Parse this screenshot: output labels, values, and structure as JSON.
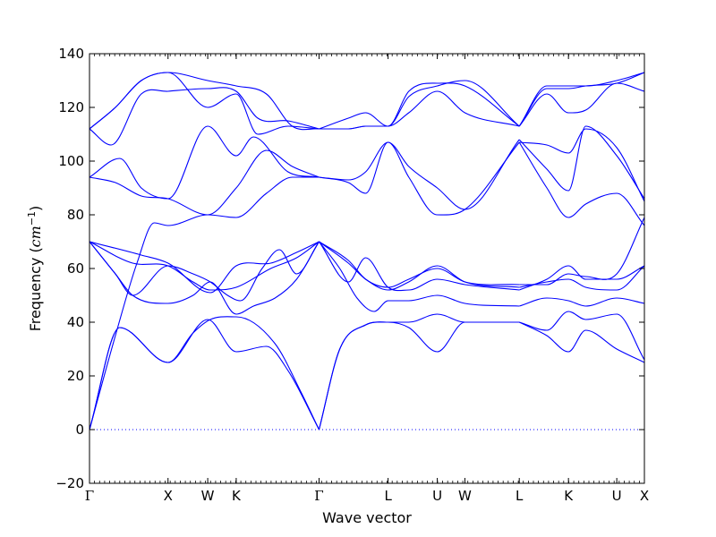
{
  "chart_data": {
    "type": "line",
    "title": "",
    "xlabel": "Wave vector",
    "ylabel": "Frequency (cm⁻¹)",
    "ylabel_parts": {
      "text": "Frequency (",
      "unit": "cm",
      "exp": "−1",
      "close": ")"
    },
    "ylim": [
      -20,
      140
    ],
    "yticks": [
      -20,
      0,
      20,
      40,
      60,
      80,
      100,
      120,
      140
    ],
    "ytick_labels": [
      "−20",
      "0",
      "20",
      "40",
      "60",
      "80",
      "100",
      "120",
      "140"
    ],
    "xlim": [
      0,
      6.43
    ],
    "xticks": [
      {
        "label": "Γ",
        "x": 0.0
      },
      {
        "label": "X",
        "x": 0.91
      },
      {
        "label": "W",
        "x": 1.37
      },
      {
        "label": "K",
        "x": 1.7
      },
      {
        "label": "Γ",
        "x": 2.66
      },
      {
        "label": "L",
        "x": 3.46
      },
      {
        "label": "U",
        "x": 4.03
      },
      {
        "label": "W",
        "x": 4.35
      },
      {
        "label": "L",
        "x": 4.98
      },
      {
        "label": "K",
        "x": 5.55
      },
      {
        "label": "U",
        "x": 6.11
      },
      {
        "label": "X",
        "x": 6.43
      }
    ],
    "zero_line": true,
    "grid": false,
    "legend": "none",
    "line_color": "#0000ff",
    "series": [
      {
        "x": [
          0,
          0.35,
          0.91,
          1.37,
          1.7,
          2.05,
          2.3,
          2.66
        ],
        "values": [
          0,
          38,
          25,
          41,
          29,
          31,
          22,
          0
        ]
      },
      {
        "x": [
          0,
          0.35,
          0.91,
          1.2,
          1.4,
          1.7,
          2.15,
          2.45,
          2.66
        ],
        "values": [
          0,
          38,
          25,
          36,
          41,
          42,
          32,
          14,
          0
        ]
      },
      {
        "x": [
          0,
          0.3,
          0.5,
          0.91,
          1.2,
          1.4,
          1.7,
          1.9,
          2.15,
          2.4,
          2.66
        ],
        "values": [
          70,
          58,
          50,
          47,
          50,
          55,
          43,
          46,
          49,
          56,
          70
        ]
      },
      {
        "x": [
          0,
          0.3,
          0.5,
          0.91,
          1.2,
          1.4,
          1.6,
          1.75,
          2.0,
          2.2,
          2.4,
          2.66
        ],
        "values": [
          70,
          58,
          50,
          61,
          58,
          55,
          50,
          48,
          60,
          67,
          58,
          70
        ]
      },
      {
        "x": [
          0,
          0.5,
          0.91,
          1.2,
          1.4,
          1.7,
          2.1,
          2.4,
          2.66
        ],
        "values": [
          70,
          62,
          61,
          55,
          52,
          53,
          60,
          64,
          70
        ]
      },
      {
        "x": [
          0,
          0.6,
          0.91,
          1.4,
          1.7,
          2.1,
          2.4,
          2.66
        ],
        "values": [
          70,
          65,
          62,
          51,
          61,
          62,
          66,
          70
        ]
      },
      {
        "x": [
          0,
          0.3,
          0.55,
          0.75,
          0.91,
          1.37,
          1.7,
          2.05,
          2.35,
          2.66
        ],
        "values": [
          0,
          35,
          62,
          77,
          76,
          80,
          79,
          88,
          94,
          94
        ]
      },
      {
        "x": [
          0,
          0.3,
          0.6,
          0.91,
          1.37,
          1.7,
          2.05,
          2.35,
          2.66
        ],
        "values": [
          94,
          92,
          87,
          86,
          80,
          90,
          104,
          98,
          94
        ]
      },
      {
        "x": [
          0,
          0.35,
          0.6,
          0.91,
          1.37,
          1.7,
          1.9,
          2.3,
          2.66
        ],
        "values": [
          94,
          101,
          90,
          86,
          113,
          102,
          109,
          96,
          94
        ]
      },
      {
        "x": [
          0,
          0.25,
          0.6,
          0.91,
          1.37,
          1.7,
          1.95,
          2.3,
          2.66
        ],
        "values": [
          112,
          106,
          125,
          126,
          127,
          126,
          116,
          115,
          112
        ]
      },
      {
        "x": [
          0,
          0.3,
          0.6,
          0.91,
          1.37,
          1.7,
          1.95,
          2.3,
          2.66
        ],
        "values": [
          112,
          120,
          130,
          133,
          120,
          125,
          110,
          113,
          112
        ]
      },
      {
        "x": [
          0,
          0.3,
          0.6,
          0.91,
          1.37,
          1.7,
          2.05,
          2.35,
          2.66
        ],
        "values": [
          112,
          120,
          130,
          133,
          130,
          128,
          125,
          113,
          112
        ]
      },
      {
        "x": [
          2.66,
          2.9,
          3.2,
          3.46,
          3.7,
          4.03,
          4.35,
          4.98
        ],
        "values": [
          0,
          30,
          39,
          40,
          38,
          29,
          40,
          40
        ]
      },
      {
        "x": [
          2.66,
          2.9,
          3.2,
          3.46,
          3.7,
          4.03,
          4.35,
          4.98
        ],
        "values": [
          0,
          30,
          39,
          40,
          40,
          43,
          40,
          40
        ]
      },
      {
        "x": [
          2.66,
          2.9,
          3.1,
          3.3,
          3.46,
          3.7,
          4.03,
          4.35,
          4.98
        ],
        "values": [
          70,
          60,
          49,
          44,
          48,
          48,
          50,
          47,
          46
        ]
      },
      {
        "x": [
          2.66,
          3.0,
          3.2,
          3.46,
          3.7,
          4.03,
          4.35,
          4.98
        ],
        "values": [
          70,
          55,
          64,
          53,
          52,
          56,
          54,
          52
        ]
      },
      {
        "x": [
          2.66,
          3.0,
          3.2,
          3.46,
          3.7,
          4.03,
          4.35,
          4.98
        ],
        "values": [
          70,
          62,
          56,
          52,
          55,
          61,
          55,
          53
        ]
      },
      {
        "x": [
          2.66,
          3.0,
          3.2,
          3.46,
          3.7,
          4.03,
          4.35,
          4.98
        ],
        "values": [
          70,
          63,
          56,
          53,
          56,
          60,
          55,
          54
        ]
      },
      {
        "x": [
          2.66,
          3.0,
          3.2,
          3.46,
          3.7,
          4.03,
          4.35,
          4.98
        ],
        "values": [
          94,
          92,
          88,
          107,
          94,
          80,
          82,
          107
        ]
      },
      {
        "x": [
          2.66,
          3.0,
          3.2,
          3.46,
          3.7,
          4.03,
          4.35,
          4.98
        ],
        "values": [
          94,
          93,
          96,
          107,
          98,
          90,
          82,
          108
        ]
      },
      {
        "x": [
          2.66,
          3.0,
          3.2,
          3.46,
          3.7,
          4.03,
          4.35,
          4.98
        ],
        "values": [
          112,
          116,
          118,
          113,
          118,
          126,
          118,
          113
        ]
      },
      {
        "x": [
          2.66,
          3.0,
          3.2,
          3.46,
          3.7,
          4.03,
          4.35,
          4.98
        ],
        "values": [
          112,
          112,
          113,
          113,
          124,
          128,
          130,
          113
        ]
      },
      {
        "x": [
          2.66,
          3.0,
          3.2,
          3.46,
          3.7,
          4.03,
          4.35,
          4.98
        ],
        "values": [
          112,
          112,
          113,
          113,
          126,
          129,
          128,
          113
        ]
      },
      {
        "x": [
          4.98,
          5.3,
          5.55,
          5.75,
          6.11,
          6.43
        ],
        "values": [
          40,
          35,
          29,
          37,
          30,
          25
        ]
      },
      {
        "x": [
          4.98,
          5.3,
          5.55,
          5.75,
          6.11,
          6.43
        ],
        "values": [
          40,
          37,
          44,
          41,
          43,
          26
        ]
      },
      {
        "x": [
          4.98,
          5.3,
          5.55,
          5.75,
          6.11,
          6.43
        ],
        "values": [
          46,
          49,
          48,
          46,
          49,
          47
        ]
      },
      {
        "x": [
          4.98,
          5.3,
          5.55,
          5.75,
          6.11,
          6.43
        ],
        "values": [
          52,
          56,
          61,
          56,
          56,
          61
        ]
      },
      {
        "x": [
          4.98,
          5.3,
          5.55,
          5.75,
          6.11,
          6.43
        ],
        "values": [
          53,
          55,
          56,
          53,
          52,
          61
        ]
      },
      {
        "x": [
          4.98,
          5.3,
          5.55,
          5.75,
          6.11,
          6.43
        ],
        "values": [
          54,
          54,
          58,
          57,
          58,
          79
        ]
      },
      {
        "x": [
          4.98,
          5.3,
          5.55,
          5.75,
          6.11,
          6.43
        ],
        "values": [
          107,
          90,
          79,
          84,
          88,
          76
        ]
      },
      {
        "x": [
          4.98,
          5.3,
          5.55,
          5.75,
          6.11,
          6.43
        ],
        "values": [
          108,
          97,
          89,
          113,
          102,
          86
        ]
      },
      {
        "x": [
          4.98,
          5.3,
          5.55,
          5.75,
          6.11,
          6.43
        ],
        "values": [
          107,
          106,
          103,
          112,
          105,
          85
        ]
      },
      {
        "x": [
          4.98,
          5.3,
          5.55,
          5.75,
          6.11,
          6.43
        ],
        "values": [
          113,
          125,
          118,
          119,
          129,
          126
        ]
      },
      {
        "x": [
          4.98,
          5.3,
          5.55,
          5.75,
          6.11,
          6.43
        ],
        "values": [
          113,
          127,
          127,
          128,
          129,
          133
        ]
      },
      {
        "x": [
          4.98,
          5.3,
          5.55,
          5.75,
          6.11,
          6.43
        ],
        "values": [
          113,
          128,
          128,
          128,
          130,
          133
        ]
      }
    ]
  }
}
